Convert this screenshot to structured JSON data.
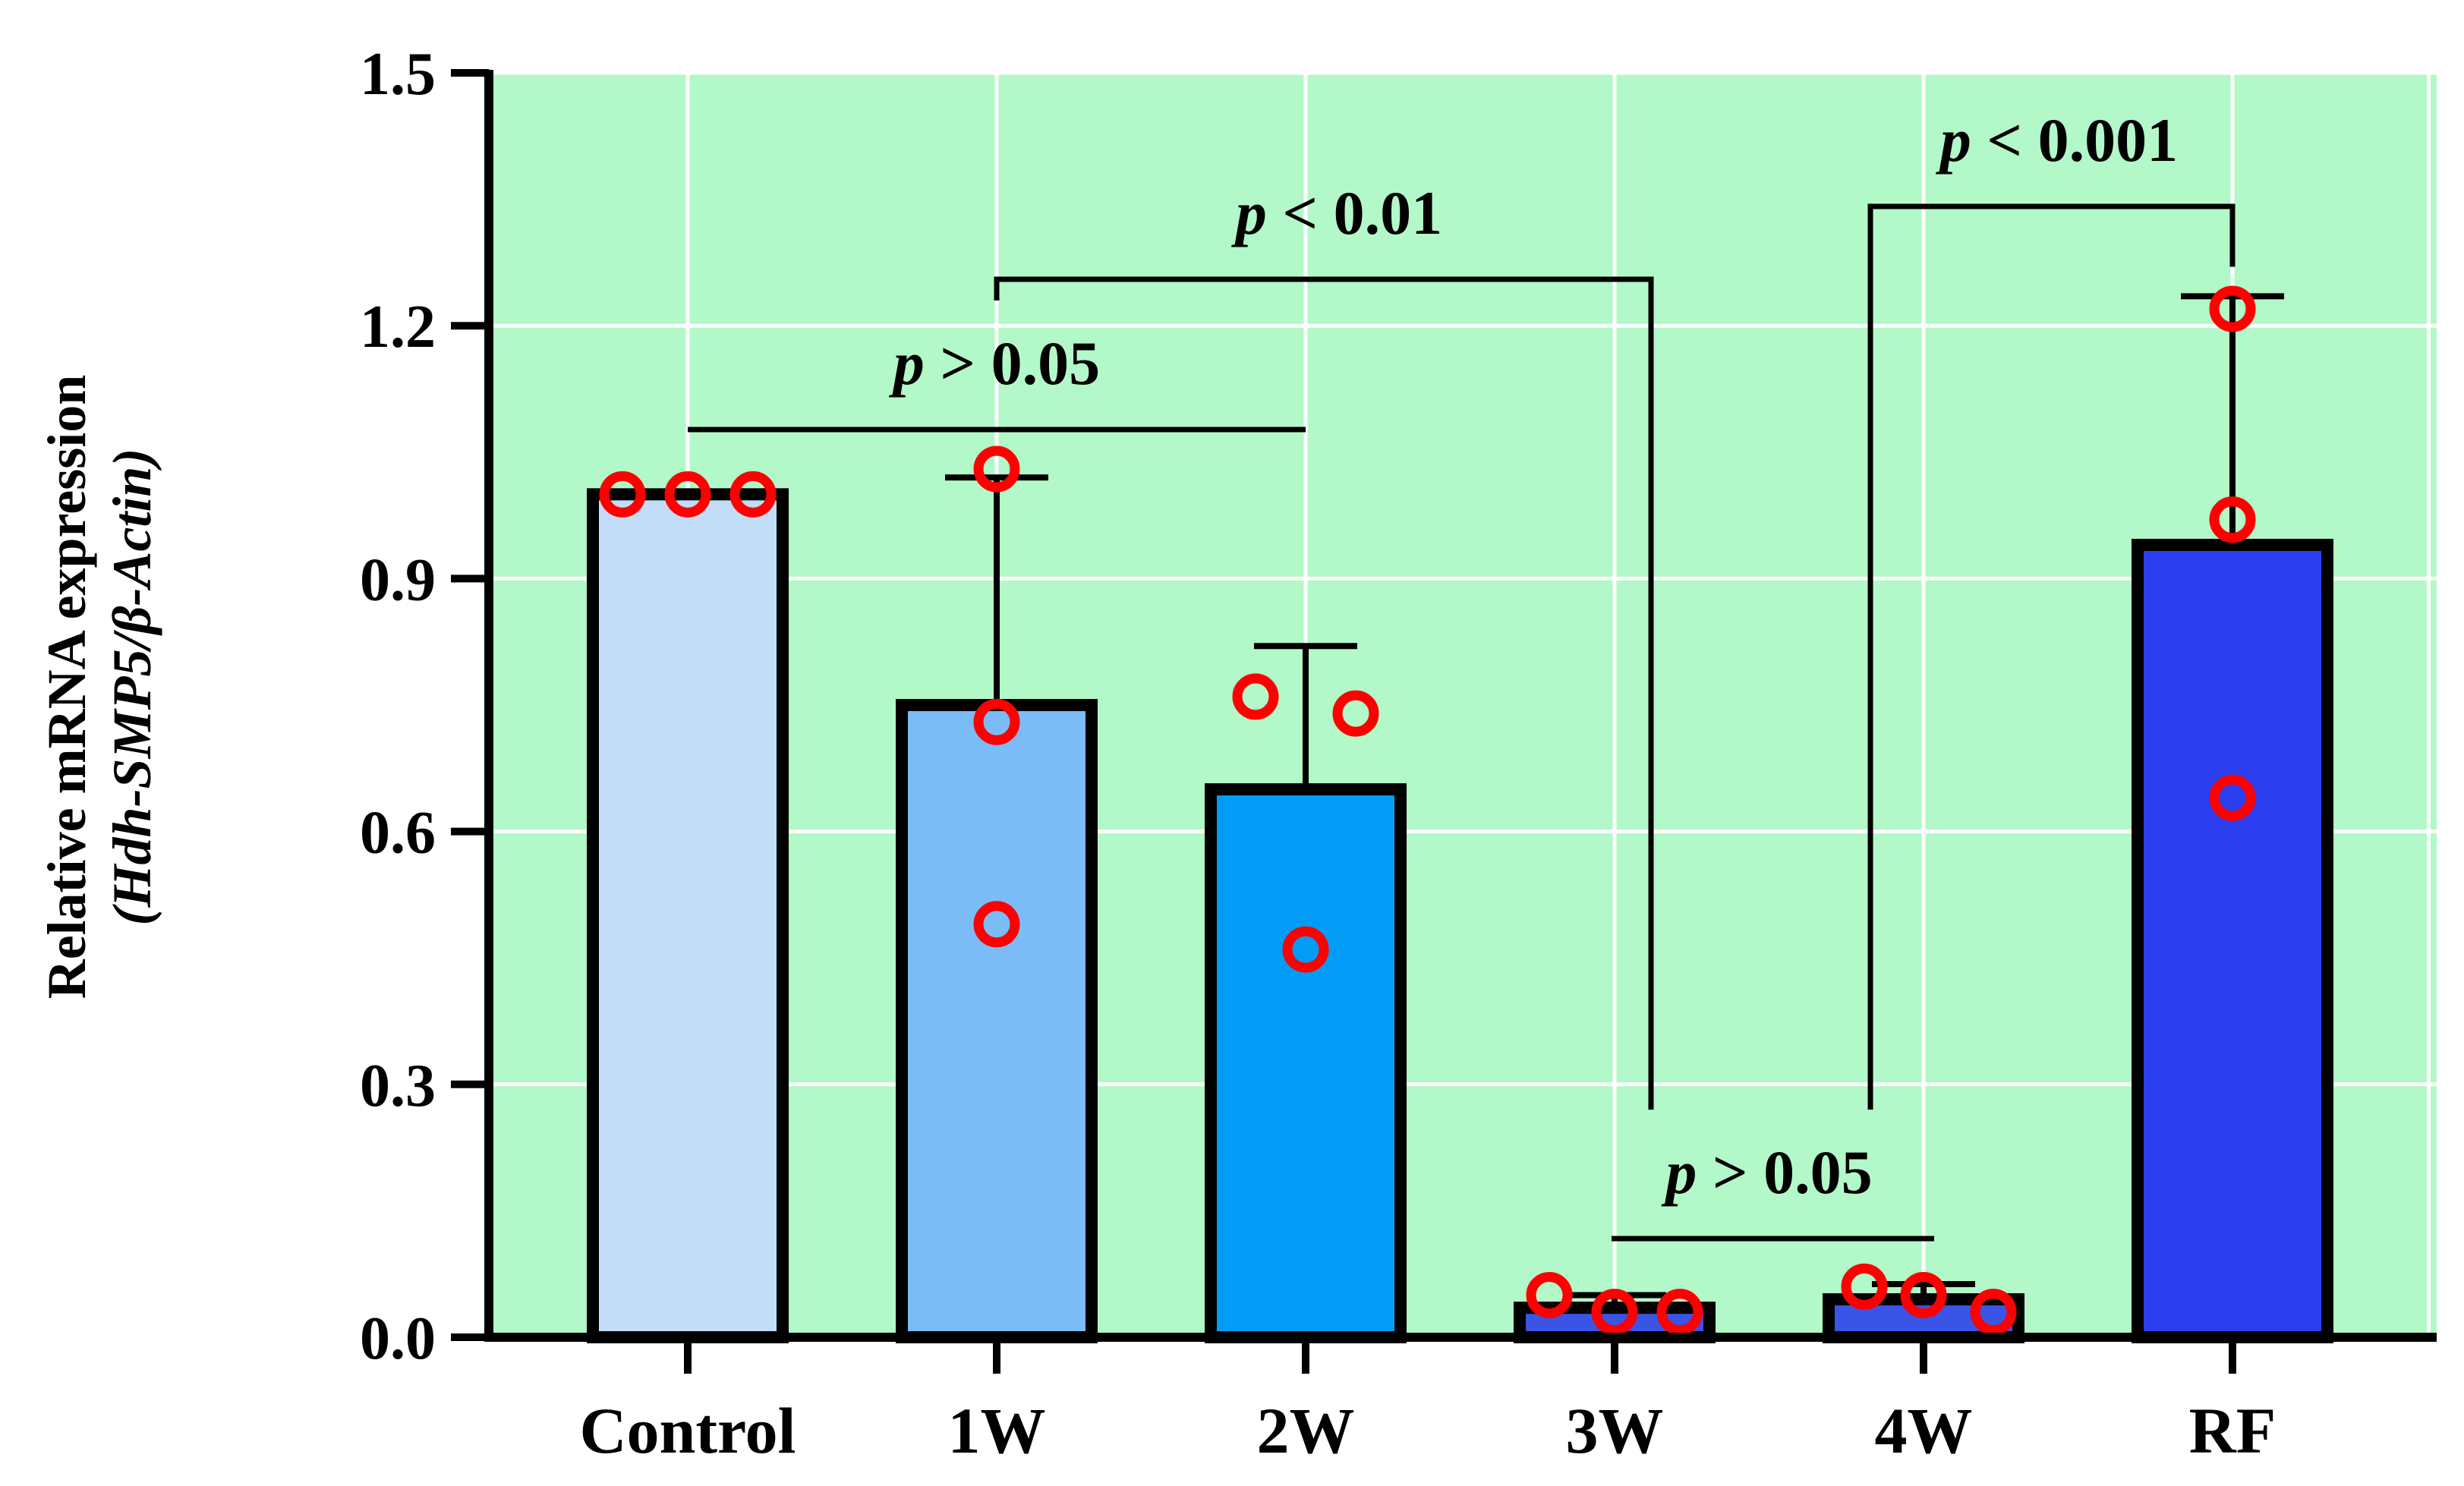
{
  "chart_data": {
    "type": "bar",
    "title": "",
    "xlabel": "",
    "ylabel_line1": "Relative mRNA expression",
    "ylabel_line2": "(Hdh-SMP5/β-Actin)",
    "ylim": [
      0,
      1.5
    ],
    "yticks": [
      0.0,
      0.3,
      0.6,
      0.9,
      1.2,
      1.5
    ],
    "ytick_labels": [
      "0.0",
      "0.3",
      "0.6",
      "0.9",
      "1.2",
      "1.5"
    ],
    "grid": true,
    "categories": [
      "Control",
      "1W",
      "2W",
      "3W",
      "4W",
      "RF"
    ],
    "values": [
      1.0,
      0.75,
      0.65,
      0.035,
      0.045,
      0.94
    ],
    "errors": [
      0.0,
      0.27,
      0.17,
      0.015,
      0.018,
      0.295
    ],
    "bar_colors": [
      "#c2ddf7",
      "#7bbcf6",
      "#029cf6",
      "#3a54e6",
      "#3a54e6",
      "#2b3ff0"
    ],
    "points": [
      [
        1.0,
        1.0,
        1.0
      ],
      [
        1.03,
        0.73,
        0.49
      ],
      [
        0.76,
        0.74,
        0.46
      ],
      [
        0.05,
        0.03,
        0.03
      ],
      [
        0.06,
        0.05,
        0.03
      ],
      [
        1.22,
        0.97,
        0.64
      ]
    ],
    "significance": [
      {
        "from": 0,
        "to": 2,
        "label": "p > 0.05",
        "p": "p",
        "rest": " > 0.05"
      },
      {
        "from": 1,
        "to": 3,
        "label": "p < 0.01",
        "p": "p",
        "rest": " < 0.01"
      },
      {
        "from": 4,
        "to": 5,
        "label": "p < 0.001",
        "p": "p",
        "rest": " < 0.001"
      },
      {
        "from": 3,
        "to": 4,
        "label": "p > 0.05",
        "p": "p",
        "rest": " > 0.05"
      }
    ],
    "colors": {
      "plot_background": "#b3f8c8",
      "grid": "#ffffff",
      "point_stroke": "#ff0000",
      "axis": "#000000"
    }
  }
}
